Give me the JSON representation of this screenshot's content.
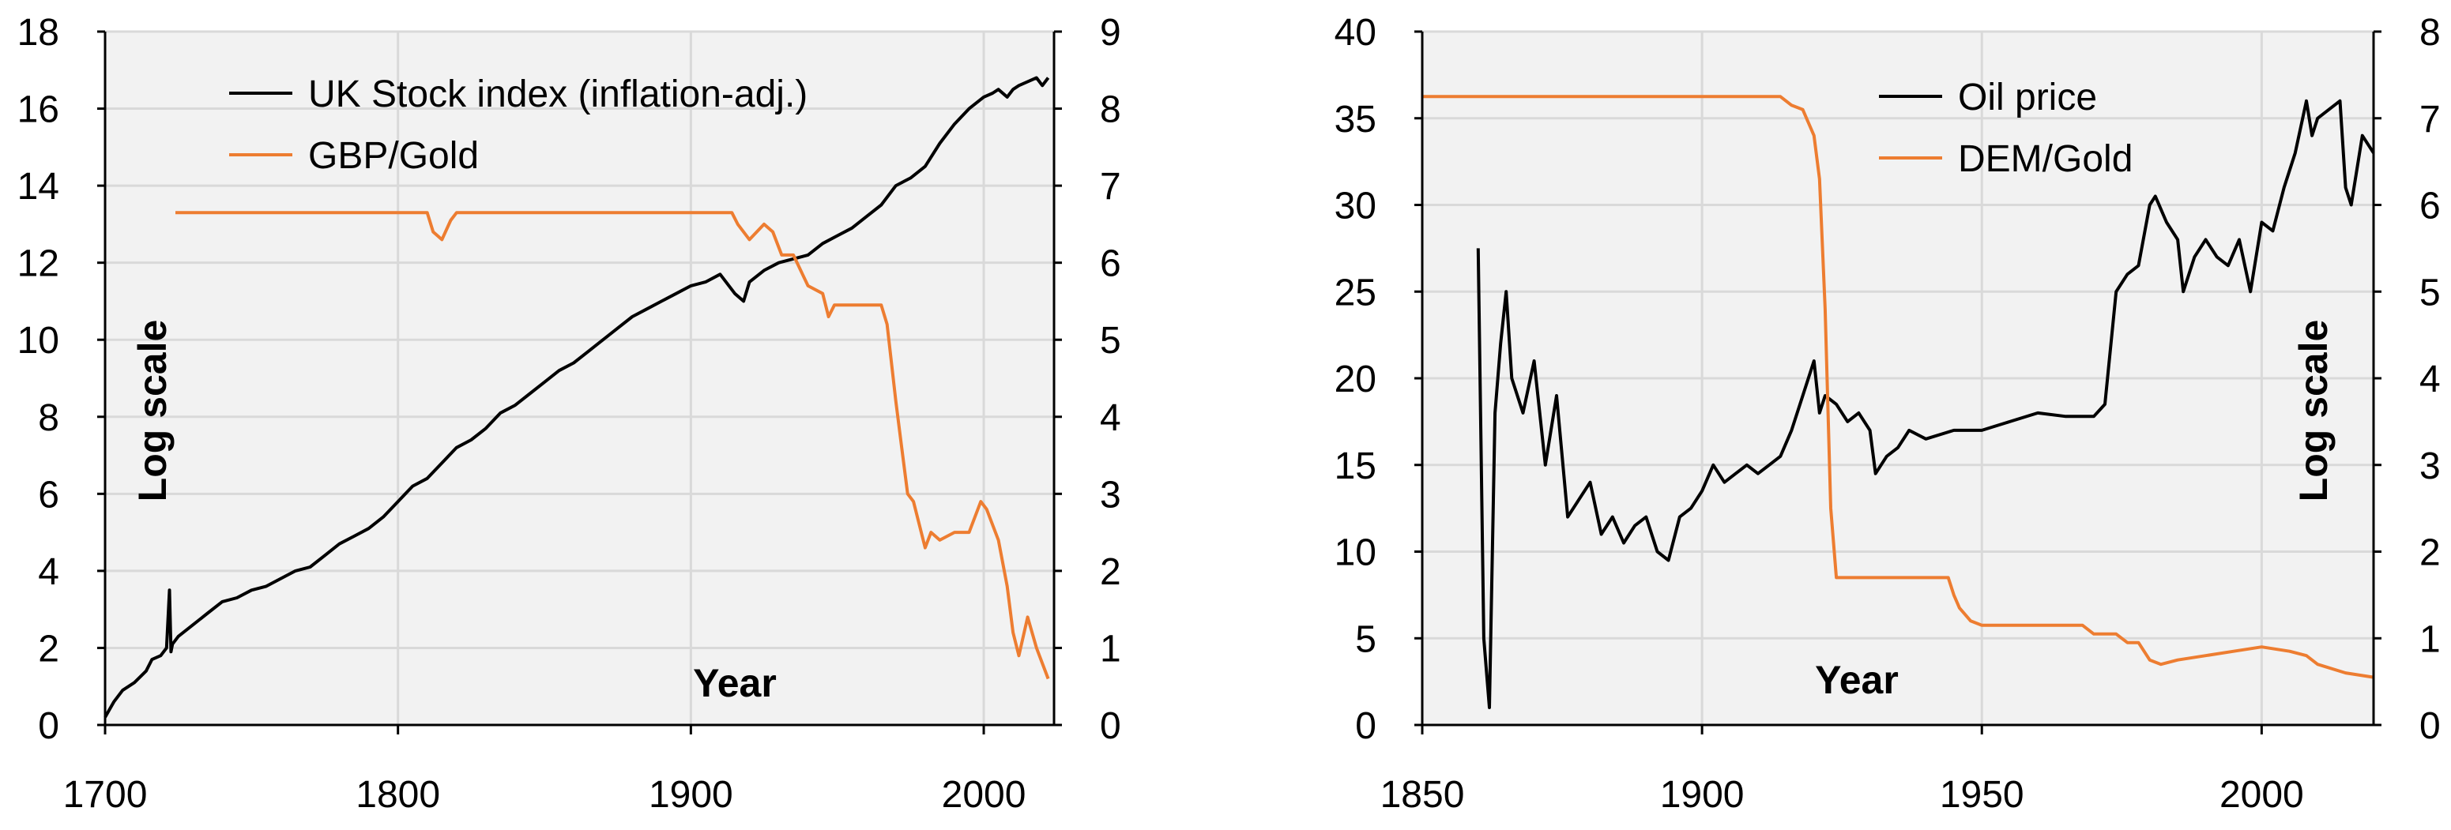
{
  "chart_data": [
    {
      "type": "line",
      "title": "",
      "xlabel": "Year",
      "ylabel": "",
      "annotation": "Log scale",
      "xlim": [
        1700,
        2024
      ],
      "x_ticks": [
        1700,
        1800,
        1900,
        2000
      ],
      "ylim_left": [
        0,
        18
      ],
      "y_ticks_left": [
        0,
        2,
        4,
        6,
        8,
        10,
        12,
        14,
        16,
        18
      ],
      "ylim_right": [
        0,
        9
      ],
      "y_ticks_right": [
        0,
        1,
        2,
        3,
        4,
        5,
        6,
        7,
        8,
        9
      ],
      "grid": true,
      "legend_position": "top-left",
      "series": [
        {
          "name": "UK Stock index (inflation-adj.)",
          "axis": "left",
          "color": "#000000",
          "x": [
            1700,
            1703,
            1706,
            1710,
            1714,
            1716,
            1719,
            1721,
            1722,
            1722.5,
            1723,
            1725,
            1730,
            1735,
            1740,
            1745,
            1750,
            1755,
            1760,
            1765,
            1770,
            1775,
            1780,
            1785,
            1790,
            1795,
            1800,
            1805,
            1810,
            1815,
            1820,
            1825,
            1830,
            1835,
            1840,
            1845,
            1850,
            1855,
            1860,
            1865,
            1870,
            1875,
            1880,
            1885,
            1890,
            1895,
            1900,
            1905,
            1910,
            1915,
            1918,
            1920,
            1925,
            1930,
            1935,
            1940,
            1945,
            1950,
            1955,
            1960,
            1965,
            1970,
            1975,
            1980,
            1985,
            1990,
            1995,
            2000,
            2003,
            2005,
            2008,
            2010,
            2012,
            2015,
            2018,
            2020,
            2022
          ],
          "values": [
            0.2,
            0.6,
            0.9,
            1.1,
            1.4,
            1.7,
            1.8,
            2.0,
            3.5,
            1.9,
            2.1,
            2.3,
            2.6,
            2.9,
            3.2,
            3.3,
            3.5,
            3.6,
            3.8,
            4.0,
            4.1,
            4.4,
            4.7,
            4.9,
            5.1,
            5.4,
            5.8,
            6.2,
            6.4,
            6.8,
            7.2,
            7.4,
            7.7,
            8.1,
            8.3,
            8.6,
            8.9,
            9.2,
            9.4,
            9.7,
            10.0,
            10.3,
            10.6,
            10.8,
            11.0,
            11.2,
            11.4,
            11.5,
            11.7,
            11.2,
            11.0,
            11.5,
            11.8,
            12.0,
            12.1,
            12.2,
            12.5,
            12.7,
            12.9,
            13.2,
            13.5,
            14.0,
            14.2,
            14.5,
            15.1,
            15.6,
            16.0,
            16.3,
            16.4,
            16.5,
            16.3,
            16.5,
            16.6,
            16.7,
            16.8,
            16.6,
            16.8
          ]
        },
        {
          "name": "GBP/Gold",
          "axis": "right",
          "color": "#ED7D31",
          "x": [
            1724,
            1810,
            1812,
            1815,
            1818,
            1820,
            1914,
            1916,
            1920,
            1925,
            1928,
            1931,
            1935,
            1940,
            1945,
            1947,
            1949,
            1960,
            1965,
            1967,
            1970,
            1972,
            1974,
            1976,
            1978,
            1980,
            1982,
            1985,
            1990,
            1995,
            1999,
            2001,
            2005,
            2008,
            2010,
            2012,
            2015,
            2018,
            2020,
            2022
          ],
          "values": [
            6.65,
            6.65,
            6.4,
            6.3,
            6.55,
            6.65,
            6.65,
            6.5,
            6.3,
            6.5,
            6.4,
            6.1,
            6.1,
            5.7,
            5.6,
            5.3,
            5.45,
            5.45,
            5.45,
            5.2,
            4.2,
            3.6,
            3.0,
            2.9,
            2.6,
            2.3,
            2.5,
            2.4,
            2.5,
            2.5,
            2.9,
            2.8,
            2.4,
            1.8,
            1.2,
            0.9,
            1.4,
            1.0,
            0.8,
            0.6
          ]
        }
      ]
    },
    {
      "type": "line",
      "title": "",
      "xlabel": "Year",
      "ylabel": "",
      "annotation": "Log scale",
      "xlim": [
        1850,
        2020
      ],
      "x_ticks": [
        1850,
        1900,
        1950,
        2000
      ],
      "ylim_left": [
        0,
        40
      ],
      "y_ticks_left": [
        0,
        5,
        10,
        15,
        20,
        25,
        30,
        35,
        40
      ],
      "ylim_right": [
        0,
        8
      ],
      "y_ticks_right": [
        0,
        1,
        2,
        3,
        4,
        5,
        6,
        7,
        8
      ],
      "grid": true,
      "legend_position": "top-right",
      "series": [
        {
          "name": "Oil price",
          "axis": "left",
          "color": "#000000",
          "x": [
            1860,
            1861,
            1862,
            1863,
            1864,
            1865,
            1866,
            1868,
            1870,
            1872,
            1874,
            1876,
            1878,
            1880,
            1882,
            1884,
            1886,
            1888,
            1890,
            1892,
            1894,
            1896,
            1898,
            1900,
            1902,
            1904,
            1906,
            1908,
            1910,
            1912,
            1914,
            1916,
            1918,
            1920,
            1921,
            1922,
            1924,
            1926,
            1928,
            1930,
            1931,
            1933,
            1935,
            1937,
            1940,
            1945,
            1950,
            1955,
            1960,
            1965,
            1970,
            1972,
            1974,
            1976,
            1978,
            1980,
            1981,
            1983,
            1985,
            1986,
            1988,
            1990,
            1992,
            1994,
            1996,
            1998,
            2000,
            2002,
            2004,
            2006,
            2008,
            2009,
            2010,
            2012,
            2014,
            2015,
            2016,
            2018,
            2020
          ],
          "values": [
            27.5,
            5.0,
            1.0,
            18.0,
            22.0,
            25.0,
            20.0,
            18.0,
            21.0,
            15.0,
            19.0,
            12.0,
            13.0,
            14.0,
            11.0,
            12.0,
            10.5,
            11.5,
            12.0,
            10.0,
            9.5,
            12.0,
            12.5,
            13.5,
            15.0,
            14.0,
            14.5,
            15.0,
            14.5,
            15.0,
            15.5,
            17.0,
            19.0,
            21.0,
            18.0,
            19.0,
            18.5,
            17.5,
            18.0,
            17.0,
            14.5,
            15.5,
            16.0,
            17.0,
            16.5,
            17.0,
            17.0,
            17.5,
            18.0,
            17.8,
            17.8,
            18.5,
            25.0,
            26.0,
            26.5,
            30.0,
            30.5,
            29.0,
            28.0,
            25.0,
            27.0,
            28.0,
            27.0,
            26.5,
            28.0,
            25.0,
            29.0,
            28.5,
            31.0,
            33.0,
            36.0,
            34.0,
            35.0,
            35.5,
            36.0,
            31.0,
            30.0,
            34.0,
            33.0
          ]
        },
        {
          "name": "DEM/Gold",
          "axis": "right",
          "color": "#ED7D31",
          "x": [
            1850,
            1860,
            1870,
            1880,
            1890,
            1900,
            1910,
            1914,
            1916,
            1918,
            1920,
            1921,
            1922,
            1923,
            1924,
            1930,
            1940,
            1944,
            1945,
            1946,
            1948,
            1950,
            1955,
            1960,
            1965,
            1968,
            1970,
            1972,
            1974,
            1976,
            1978,
            1980,
            1982,
            1985,
            1990,
            1995,
            2000,
            2005,
            2008,
            2010,
            2015,
            2020
          ],
          "values": [
            7.25,
            7.25,
            7.25,
            7.25,
            7.25,
            7.25,
            7.25,
            7.25,
            7.15,
            7.1,
            6.8,
            6.3,
            4.8,
            2.5,
            1.7,
            1.7,
            1.7,
            1.7,
            1.5,
            1.35,
            1.2,
            1.15,
            1.15,
            1.15,
            1.15,
            1.15,
            1.05,
            1.05,
            1.05,
            0.95,
            0.95,
            0.75,
            0.7,
            0.75,
            0.8,
            0.85,
            0.9,
            0.85,
            0.8,
            0.7,
            0.6,
            0.55
          ]
        }
      ]
    }
  ]
}
